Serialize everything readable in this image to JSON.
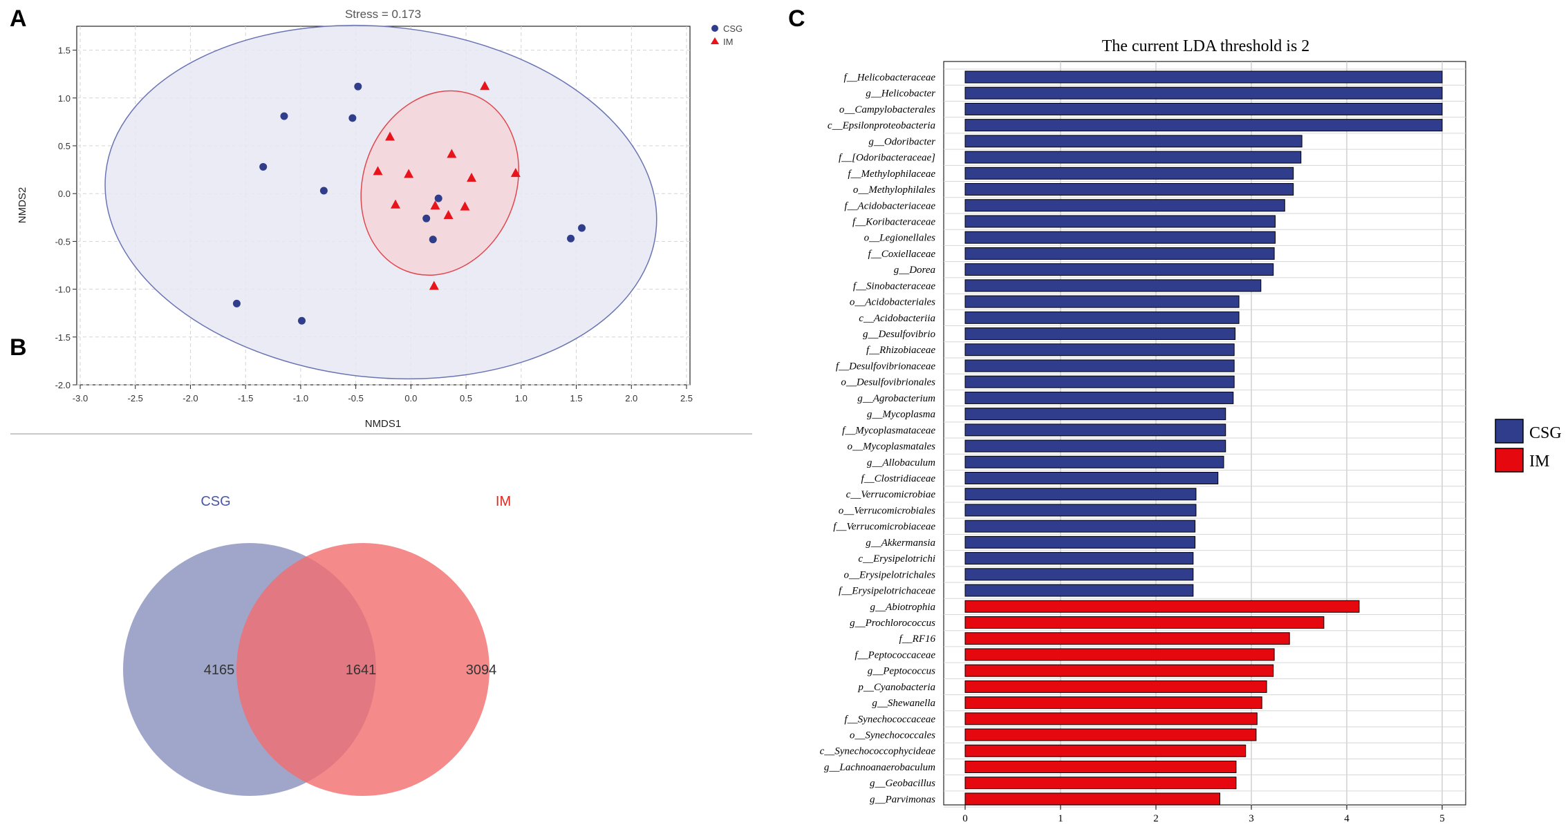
{
  "panels": {
    "a": "A",
    "b": "B",
    "c": "C"
  },
  "chart_data": [
    {
      "type": "scatter",
      "title": "Stress = 0.173",
      "xlabel": "NMDS1",
      "ylabel": "NMDS2",
      "xlim": [
        -3.0,
        2.5
      ],
      "ylim": [
        -2.0,
        1.75
      ],
      "xticks": [
        "-3.0",
        "-2.5",
        "-2.0",
        "-1.5",
        "-1.0",
        "-0.5",
        "0.0",
        "0.5",
        "1.0",
        "1.5",
        "2.0",
        "2.5"
      ],
      "yticks": [
        "1.5",
        "1.0",
        "0.5",
        "0.0",
        "-0.5",
        "-1.0",
        "-1.5",
        "-2.0"
      ],
      "grid": true,
      "legend_position": "top-right",
      "series": [
        {
          "name": "CSG",
          "color": "#2f3d8b",
          "marker": "circle",
          "points": [
            [
              -0.48,
              1.12
            ],
            [
              -1.15,
              0.81
            ],
            [
              -0.53,
              0.79
            ],
            [
              -1.34,
              0.28
            ],
            [
              -0.79,
              0.03
            ],
            [
              0.25,
              -0.05
            ],
            [
              0.14,
              -0.26
            ],
            [
              0.2,
              -0.48
            ],
            [
              1.55,
              -0.36
            ],
            [
              1.45,
              -0.47
            ],
            [
              -1.58,
              -1.15
            ],
            [
              -0.99,
              -1.33
            ]
          ]
        },
        {
          "name": "IM",
          "color": "#e8141b",
          "marker": "triangle",
          "points": [
            [
              0.67,
              1.12
            ],
            [
              -0.19,
              0.59
            ],
            [
              0.37,
              0.41
            ],
            [
              -0.3,
              0.23
            ],
            [
              -0.02,
              0.2
            ],
            [
              0.55,
              0.16
            ],
            [
              0.95,
              0.21
            ],
            [
              -0.14,
              -0.12
            ],
            [
              0.22,
              -0.13
            ],
            [
              0.49,
              -0.14
            ],
            [
              0.34,
              -0.23
            ],
            [
              0.21,
              -0.97
            ]
          ]
        }
      ],
      "ellipses": [
        {
          "name": "CSG",
          "fill": "#e6e8f2",
          "stroke": "#6a74b3"
        },
        {
          "name": "IM",
          "fill": "#f5d6d9",
          "stroke": "#e0474e"
        }
      ]
    },
    {
      "type": "venn",
      "sets": [
        {
          "name": "CSG",
          "color": "#7b83b6",
          "label_color": "#4b56a1"
        },
        {
          "name": "IM",
          "color": "#f26d6e",
          "label_color": "#e3271d"
        }
      ],
      "counts": {
        "csg_only": "4165",
        "shared": "1641",
        "im_only": "3094"
      }
    },
    {
      "type": "bar",
      "orientation": "horizontal",
      "title": "The current LDA threshold is 2",
      "xlim": [
        0,
        5.25
      ],
      "xticks": [
        "0",
        "1",
        "2",
        "3",
        "4",
        "5"
      ],
      "legend_position": "right",
      "legend": [
        {
          "name": "CSG",
          "color": "#303c8c"
        },
        {
          "name": "IM",
          "color": "#e5090f"
        }
      ],
      "bars": [
        {
          "label": "f__Helicobacteraceae",
          "value": 5.0,
          "group": "CSG"
        },
        {
          "label": "g__Helicobacter",
          "value": 5.0,
          "group": "CSG"
        },
        {
          "label": "o__Campylobacterales",
          "value": 5.0,
          "group": "CSG"
        },
        {
          "label": "c__Epsilonproteobacteria",
          "value": 5.0,
          "group": "CSG"
        },
        {
          "label": "g__Odoribacter",
          "value": 3.53,
          "group": "CSG"
        },
        {
          "label": "f__[Odoribacteraceae]",
          "value": 3.52,
          "group": "CSG"
        },
        {
          "label": "f__Methylophilaceae",
          "value": 3.44,
          "group": "CSG"
        },
        {
          "label": "o__Methylophilales",
          "value": 3.44,
          "group": "CSG"
        },
        {
          "label": "f__Acidobacteriaceae",
          "value": 3.35,
          "group": "CSG"
        },
        {
          "label": "f__Koribacteraceae",
          "value": 3.25,
          "group": "CSG"
        },
        {
          "label": "o__Legionellales",
          "value": 3.25,
          "group": "CSG"
        },
        {
          "label": "f__Coxiellaceae",
          "value": 3.24,
          "group": "CSG"
        },
        {
          "label": "g__Dorea",
          "value": 3.23,
          "group": "CSG"
        },
        {
          "label": "f__Sinobacteraceae",
          "value": 3.1,
          "group": "CSG"
        },
        {
          "label": "o__Acidobacteriales",
          "value": 2.87,
          "group": "CSG"
        },
        {
          "label": "c__Acidobacteriia",
          "value": 2.87,
          "group": "CSG"
        },
        {
          "label": "g__Desulfovibrio",
          "value": 2.83,
          "group": "CSG"
        },
        {
          "label": "f__Rhizobiaceae",
          "value": 2.82,
          "group": "CSG"
        },
        {
          "label": "f__Desulfovibrionaceae",
          "value": 2.82,
          "group": "CSG"
        },
        {
          "label": "o__Desulfovibrionales",
          "value": 2.82,
          "group": "CSG"
        },
        {
          "label": "g__Agrobacterium",
          "value": 2.81,
          "group": "CSG"
        },
        {
          "label": "g__Mycoplasma",
          "value": 2.73,
          "group": "CSG"
        },
        {
          "label": "f__Mycoplasmataceae",
          "value": 2.73,
          "group": "CSG"
        },
        {
          "label": "o__Mycoplasmatales",
          "value": 2.73,
          "group": "CSG"
        },
        {
          "label": "g__Allobaculum",
          "value": 2.71,
          "group": "CSG"
        },
        {
          "label": "f__Clostridiaceae",
          "value": 2.65,
          "group": "CSG"
        },
        {
          "label": "c__Verrucomicrobiae",
          "value": 2.42,
          "group": "CSG"
        },
        {
          "label": "o__Verrucomicrobiales",
          "value": 2.42,
          "group": "CSG"
        },
        {
          "label": "f__Verrucomicrobiaceae",
          "value": 2.41,
          "group": "CSG"
        },
        {
          "label": "g__Akkermansia",
          "value": 2.41,
          "group": "CSG"
        },
        {
          "label": "c__Erysipelotrichi",
          "value": 2.39,
          "group": "CSG"
        },
        {
          "label": "o__Erysipelotrichales",
          "value": 2.39,
          "group": "CSG"
        },
        {
          "label": "f__Erysipelotrichaceae",
          "value": 2.39,
          "group": "CSG"
        },
        {
          "label": "g__Abiotrophia",
          "value": 4.13,
          "group": "IM"
        },
        {
          "label": "g__Prochlorococcus",
          "value": 3.76,
          "group": "IM"
        },
        {
          "label": "f__RF16",
          "value": 3.4,
          "group": "IM"
        },
        {
          "label": "f__Peptococcaceae",
          "value": 3.24,
          "group": "IM"
        },
        {
          "label": "g__Peptococcus",
          "value": 3.23,
          "group": "IM"
        },
        {
          "label": "p__Cyanobacteria",
          "value": 3.16,
          "group": "IM"
        },
        {
          "label": "g__Shewanella",
          "value": 3.11,
          "group": "IM"
        },
        {
          "label": "f__Synechococcaceae",
          "value": 3.06,
          "group": "IM"
        },
        {
          "label": "o__Synechococcales",
          "value": 3.05,
          "group": "IM"
        },
        {
          "label": "c__Synechococcophycideae",
          "value": 2.94,
          "group": "IM"
        },
        {
          "label": "g__Lachnoanaerobaculum",
          "value": 2.84,
          "group": "IM"
        },
        {
          "label": "g__Geobacillus",
          "value": 2.84,
          "group": "IM"
        },
        {
          "label": "g__Parvimonas",
          "value": 2.67,
          "group": "IM"
        }
      ]
    }
  ]
}
